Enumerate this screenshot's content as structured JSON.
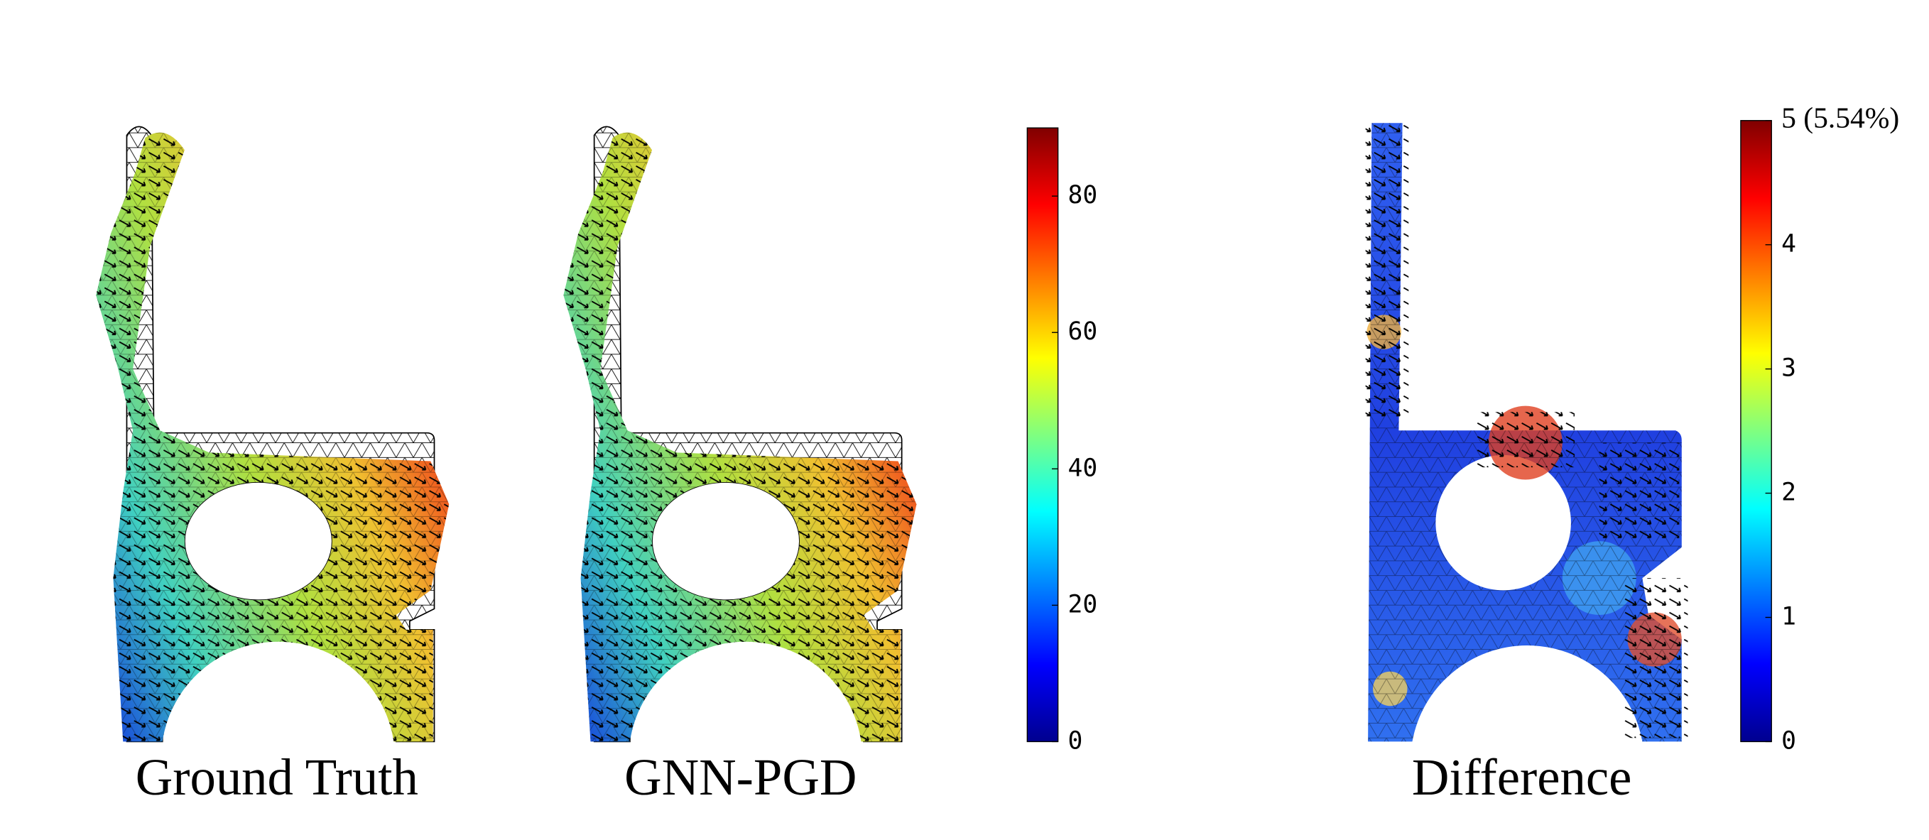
{
  "panels": [
    {
      "title": "Ground Truth"
    },
    {
      "title": "GNN-PGD"
    },
    {
      "title": "Difference"
    }
  ],
  "colorbars": [
    {
      "range": [
        0,
        90
      ],
      "ticks": [
        0,
        20,
        40,
        60,
        80
      ]
    },
    {
      "range": [
        0,
        5
      ],
      "ticks": [
        0,
        1,
        2,
        3,
        4,
        {
          "value": 5,
          "label": "5 (5.54%)"
        }
      ]
    }
  ]
}
